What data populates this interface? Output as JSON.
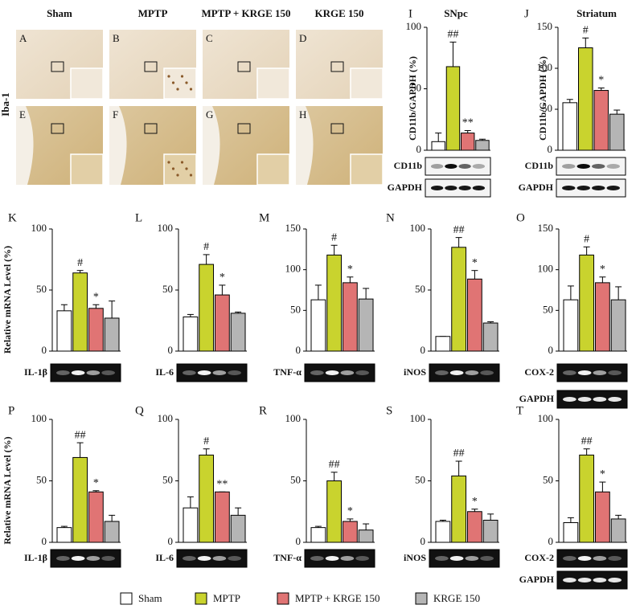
{
  "image_figure": {
    "columns": [
      "Sham",
      "MPTP",
      "MPTP + KRGE 150",
      "KRGE 150"
    ],
    "row_label": "Iba-1",
    "panels": [
      "A",
      "B",
      "C",
      "D",
      "E",
      "F",
      "G",
      "H"
    ]
  },
  "legend": {
    "names": [
      "Sham",
      "MPTP",
      "MPTP + KRGE 150",
      "KRGE 150"
    ],
    "colors": [
      "#ffffff",
      "#c9d32e",
      "#e07474",
      "#b5b5b5"
    ]
  },
  "chart_data": [
    {
      "type": "bar",
      "panel": "I",
      "title": "SNpc",
      "ylabel": "CD11b/GAPDH (%)",
      "values": [
        7,
        68,
        14,
        8
      ],
      "errors": [
        7,
        20,
        2,
        1
      ],
      "significance": [
        null,
        "##",
        "**",
        null
      ],
      "ylim": [
        0,
        100
      ],
      "yticks": [
        0,
        50,
        100
      ],
      "blots": [
        "CD11b",
        "GAPDH"
      ]
    },
    {
      "type": "bar",
      "panel": "J",
      "title": "Striatum",
      "ylabel": "CD11b/GAPDH (%)",
      "values": [
        58,
        125,
        73,
        44
      ],
      "errors": [
        4,
        12,
        3,
        5
      ],
      "significance": [
        null,
        "#",
        "*",
        null
      ],
      "ylim": [
        0,
        150
      ],
      "yticks": [
        0,
        50,
        100,
        150
      ],
      "blots": [
        "CD11b",
        "GAPDH"
      ]
    },
    {
      "type": "bar",
      "panel": "K",
      "ylabel": "Relative mRNA Level (%)",
      "values": [
        33,
        64,
        35,
        27
      ],
      "errors": [
        5,
        2,
        3,
        14
      ],
      "significance": [
        null,
        "#",
        "*",
        null
      ],
      "ylim": [
        0,
        100
      ],
      "yticks": [
        0,
        50,
        100
      ],
      "blots": [
        "IL-1β"
      ]
    },
    {
      "type": "bar",
      "panel": "L",
      "values": [
        28,
        71,
        46,
        31
      ],
      "errors": [
        2,
        8,
        8,
        1
      ],
      "significance": [
        null,
        "#",
        "*",
        null
      ],
      "ylim": [
        0,
        100
      ],
      "yticks": [
        0,
        50,
        100
      ],
      "blots": [
        "IL-6"
      ]
    },
    {
      "type": "bar",
      "panel": "M",
      "values": [
        63,
        118,
        84,
        64
      ],
      "errors": [
        18,
        12,
        7,
        13
      ],
      "significance": [
        null,
        "#",
        "*",
        null
      ],
      "ylim": [
        0,
        150
      ],
      "yticks": [
        0,
        50,
        100,
        150
      ],
      "blots": [
        "TNF-α"
      ]
    },
    {
      "type": "bar",
      "panel": "N",
      "values": [
        12,
        85,
        59,
        23
      ],
      "errors": [
        0,
        8,
        7,
        1
      ],
      "significance": [
        null,
        "##",
        "*",
        null
      ],
      "ylim": [
        0,
        100
      ],
      "yticks": [
        0,
        50,
        100
      ],
      "blots": [
        "iNOS"
      ]
    },
    {
      "type": "bar",
      "panel": "O",
      "values": [
        63,
        118,
        84,
        63
      ],
      "errors": [
        17,
        10,
        7,
        16
      ],
      "significance": [
        null,
        "#",
        "*",
        null
      ],
      "ylim": [
        0,
        150
      ],
      "yticks": [
        0,
        50,
        100,
        150
      ],
      "blots": [
        "COX-2",
        "GAPDH"
      ]
    },
    {
      "type": "bar",
      "panel": "P",
      "ylabel": "Relative mRNA Level (%)",
      "values": [
        12,
        69,
        41,
        17
      ],
      "errors": [
        1,
        12,
        1,
        5
      ],
      "significance": [
        null,
        "##",
        "*",
        null
      ],
      "ylim": [
        0,
        100
      ],
      "yticks": [
        0,
        50,
        100
      ],
      "blots": [
        "IL-1β"
      ]
    },
    {
      "type": "bar",
      "panel": "Q",
      "values": [
        28,
        71,
        41,
        22
      ],
      "errors": [
        9,
        5,
        0,
        6
      ],
      "significance": [
        null,
        "#",
        "**",
        null
      ],
      "ylim": [
        0,
        100
      ],
      "yticks": [
        0,
        50,
        100
      ],
      "blots": [
        "IL-6"
      ]
    },
    {
      "type": "bar",
      "panel": "R",
      "values": [
        12,
        50,
        17,
        10
      ],
      "errors": [
        1,
        7,
        2,
        5
      ],
      "significance": [
        null,
        "##",
        "*",
        null
      ],
      "ylim": [
        0,
        100
      ],
      "yticks": [
        0,
        50,
        100
      ],
      "blots": [
        "TNF-α"
      ]
    },
    {
      "type": "bar",
      "panel": "S",
      "values": [
        17,
        54,
        25,
        18
      ],
      "errors": [
        1,
        12,
        2,
        5
      ],
      "significance": [
        null,
        "##",
        "*",
        null
      ],
      "ylim": [
        0,
        100
      ],
      "yticks": [
        0,
        50,
        100
      ],
      "blots": [
        "iNOS"
      ]
    },
    {
      "type": "bar",
      "panel": "T",
      "values": [
        16,
        71,
        41,
        19
      ],
      "errors": [
        4,
        5,
        8,
        3
      ],
      "significance": [
        null,
        "##",
        "*",
        null
      ],
      "ylim": [
        0,
        100
      ],
      "yticks": [
        0,
        50,
        100
      ],
      "blots": [
        "COX-2",
        "GAPDH"
      ]
    }
  ]
}
